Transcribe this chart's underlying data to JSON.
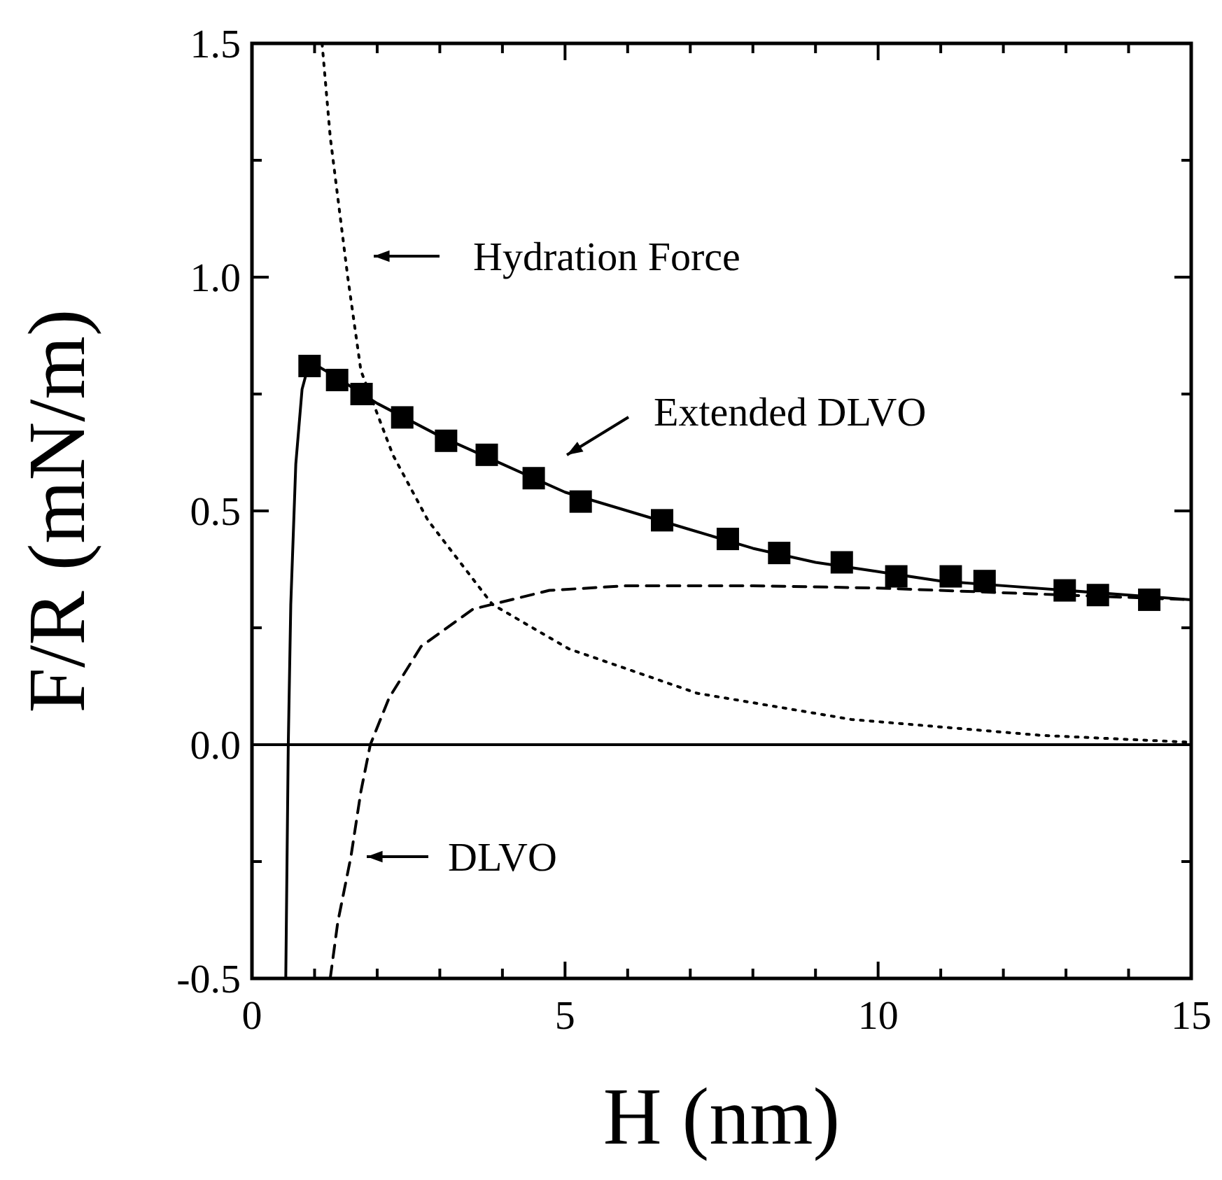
{
  "chart_data": {
    "type": "line",
    "xlabel": "H (nm)",
    "ylabel": "F/R (mN/m)",
    "xlim": [
      0,
      15
    ],
    "ylim": [
      -0.5,
      1.5
    ],
    "xticks": [
      0,
      {
        "value": 1,
        "label": null
      },
      {
        "value": 2,
        "label": null
      },
      {
        "value": 3,
        "label": null
      },
      {
        "value": 4,
        "label": null
      },
      5,
      {
        "value": 6,
        "label": null
      },
      {
        "value": 7,
        "label": null
      },
      {
        "value": 8,
        "label": null
      },
      {
        "value": 9,
        "label": null
      },
      10,
      {
        "value": 11,
        "label": null
      },
      {
        "value": 12,
        "label": null
      },
      {
        "value": 13,
        "label": null
      },
      {
        "value": 14,
        "label": null
      },
      15
    ],
    "yticks": [
      -0.5,
      {
        "value": -0.25,
        "label": null
      },
      {
        "value": 0,
        "label": "0.0"
      },
      {
        "value": 0.25,
        "label": null
      },
      0.5,
      {
        "value": 0.75,
        "label": null
      },
      {
        "value": 1,
        "label": "1.0"
      },
      {
        "value": 1.25,
        "label": null
      },
      1.5
    ],
    "grid": false,
    "ref_lines": [
      {
        "axis": "y",
        "value": 0,
        "color": "#000000",
        "line_style": "solid"
      }
    ],
    "series": [
      {
        "type": "scatter",
        "marker": "square",
        "color": "#000000",
        "x": [
          0.92,
          1.36,
          1.75,
          2.4,
          3.1,
          3.75,
          4.5,
          5.25,
          6.55,
          7.6,
          8.42,
          9.42,
          10.29,
          11.16,
          11.7,
          12.98,
          13.51,
          14.33
        ],
        "values": [
          0.81,
          0.78,
          0.75,
          0.7,
          0.65,
          0.62,
          0.57,
          0.52,
          0.48,
          0.44,
          0.41,
          0.39,
          0.36,
          0.36,
          0.35,
          0.33,
          0.32,
          0.31
        ]
      },
      {
        "line_style": "solid",
        "color": "#000000",
        "x": [
          0.54,
          0.58,
          0.62,
          0.7,
          0.8,
          0.92,
          1.3,
          2,
          3,
          4,
          5,
          6,
          7,
          8,
          9,
          10,
          11,
          12,
          13,
          14,
          15
        ],
        "values": [
          -0.5,
          0,
          0.3,
          0.6,
          0.76,
          0.82,
          0.79,
          0.73,
          0.66,
          0.6,
          0.54,
          0.5,
          0.46,
          0.42,
          0.39,
          0.37,
          0.35,
          0.34,
          0.33,
          0.32,
          0.31
        ]
      },
      {
        "line_style": "dashed",
        "color": "#000000",
        "x": [
          1.25,
          1.37,
          1.58,
          1.74,
          1.89,
          2.19,
          2.7,
          3.53,
          4.75,
          6,
          8,
          10,
          12,
          15
        ],
        "values": [
          -0.5,
          -0.38,
          -0.24,
          -0.1,
          0,
          0.1,
          0.21,
          0.29,
          0.33,
          0.34,
          0.34,
          0.335,
          0.325,
          0.31
        ]
      },
      {
        "line_style": "dotted",
        "color": "#000000",
        "x": [
          1.12,
          1.25,
          1.53,
          1.74,
          2.25,
          2.81,
          3.84,
          5.06,
          7.11,
          9.57,
          12.6,
          15
        ],
        "values": [
          1.5,
          1.3,
          1.0,
          0.8,
          0.62,
          0.48,
          0.3,
          0.205,
          0.11,
          0.054,
          0.02,
          0.005
        ]
      }
    ],
    "annotations": [
      "Hydration Force",
      "Extended DLVO",
      "DLVO"
    ]
  }
}
